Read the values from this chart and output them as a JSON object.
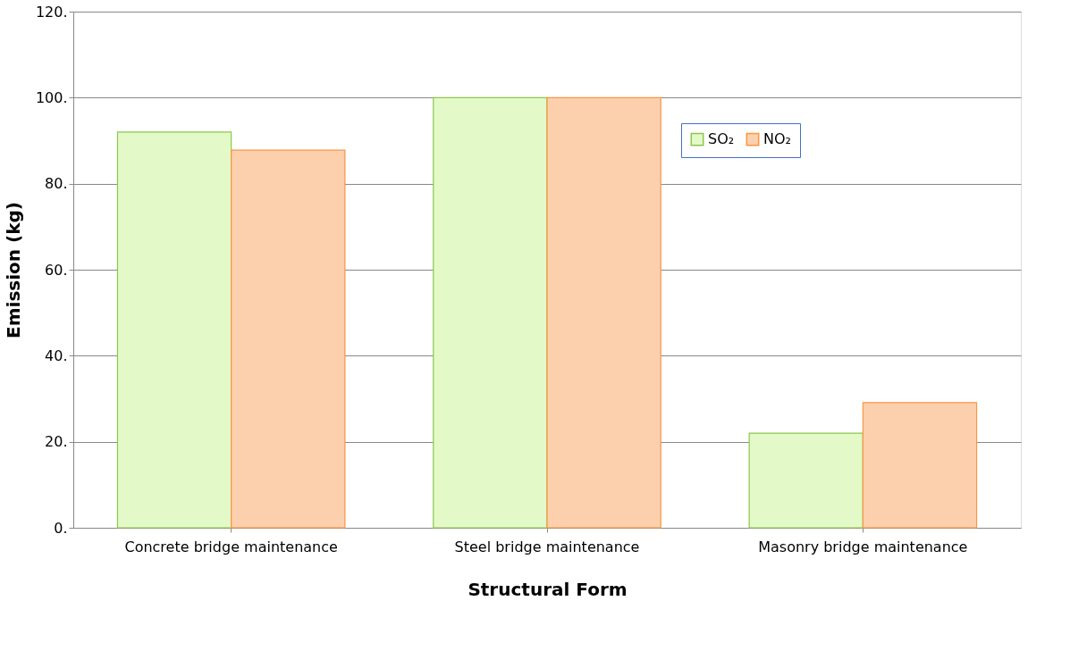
{
  "chart_data": {
    "type": "bar",
    "xlabel": "Structural Form",
    "ylabel": "Emission (kg)",
    "categories": [
      "Concrete bridge maintenance",
      "Steel bridge maintenance",
      "Masonry bridge maintenance"
    ],
    "series": [
      {
        "name": "SO₂",
        "color": "#e4f9c8",
        "values": [
          92.0,
          100.0,
          22.0
        ]
      },
      {
        "name": "NO₂",
        "color": "#fcd0ac",
        "values": [
          87.8,
          100.0,
          29.1
        ]
      }
    ],
    "ylim": [
      0,
      120
    ],
    "yticks": [
      {
        "value": 0,
        "label": "0."
      },
      {
        "value": 20,
        "label": "20."
      },
      {
        "value": 40,
        "label": "40."
      },
      {
        "value": 60,
        "label": "60."
      },
      {
        "value": 80,
        "label": "80."
      },
      {
        "value": 100,
        "label": "100."
      },
      {
        "value": 120,
        "label": "120."
      }
    ],
    "grid": "y",
    "legend": "right"
  }
}
